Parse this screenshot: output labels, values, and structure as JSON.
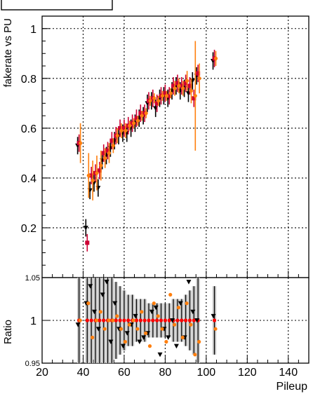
{
  "chart_data": [
    {
      "type": "scatter",
      "title": "",
      "xlabel": "",
      "ylabel": "fakerate vs PU",
      "xlim": [
        20,
        150
      ],
      "ylim": [
        0,
        1.05
      ],
      "yticks": [
        "0.2",
        "0.4",
        "0.6",
        "0.8",
        "1"
      ],
      "grid": true,
      "series": [
        {
          "color": "#000000",
          "marker": "triangle-down",
          "x": [
            38,
            42,
            44,
            46,
            48,
            50,
            52,
            54,
            56,
            58,
            60,
            62,
            64,
            66,
            68,
            70,
            72,
            74,
            76,
            78,
            80,
            82,
            84,
            86,
            88,
            90,
            92,
            94,
            96,
            104
          ],
          "y": [
            0.53,
            0.2,
            0.35,
            0.38,
            0.36,
            0.47,
            0.49,
            0.52,
            0.55,
            0.57,
            0.58,
            0.58,
            0.6,
            0.62,
            0.64,
            0.65,
            0.7,
            0.71,
            0.68,
            0.72,
            0.73,
            0.72,
            0.75,
            0.77,
            0.75,
            0.76,
            0.74,
            0.79,
            0.81,
            0.87
          ]
        },
        {
          "color": "#cc0033",
          "marker": "square",
          "x": [
            38,
            42,
            44,
            46,
            48,
            50,
            52,
            54,
            56,
            58,
            60,
            62,
            64,
            66,
            68,
            70,
            72,
            74,
            76,
            78,
            80,
            82,
            84,
            86,
            88,
            90,
            92,
            94,
            96,
            104
          ],
          "y": [
            0.54,
            0.14,
            0.41,
            0.42,
            0.43,
            0.5,
            0.51,
            0.55,
            0.57,
            0.6,
            0.6,
            0.61,
            0.62,
            0.64,
            0.66,
            0.66,
            0.71,
            0.72,
            0.7,
            0.73,
            0.74,
            0.73,
            0.77,
            0.78,
            0.77,
            0.78,
            0.77,
            0.72,
            0.82,
            0.88
          ]
        },
        {
          "color": "#ff7f0e",
          "marker": "circle",
          "x": [
            38,
            42,
            44,
            46,
            48,
            50,
            52,
            54,
            56,
            58,
            60,
            62,
            64,
            66,
            68,
            70,
            72,
            74,
            76,
            78,
            80,
            82,
            84,
            86,
            88,
            90,
            92,
            94,
            96,
            104
          ],
          "y": [
            0.54,
            0.41,
            0.39,
            0.42,
            0.45,
            0.48,
            0.5,
            0.53,
            0.57,
            0.59,
            0.59,
            0.61,
            0.62,
            0.63,
            0.65,
            0.66,
            0.71,
            0.72,
            0.71,
            0.73,
            0.73,
            0.74,
            0.76,
            0.77,
            0.76,
            0.79,
            0.75,
            0.73,
            0.8,
            0.88
          ],
          "err": [
            0.08,
            0.09,
            0.08,
            0.07,
            0.06,
            0.04,
            0.04,
            0.03,
            0.03,
            0.03,
            0.03,
            0.02,
            0.02,
            0.02,
            0.02,
            0.02,
            0.02,
            0.02,
            0.02,
            0.02,
            0.02,
            0.02,
            0.03,
            0.03,
            0.03,
            0.04,
            0.05,
            0.22,
            0.06,
            0.03
          ]
        }
      ]
    },
    {
      "type": "scatter",
      "title": "",
      "xlabel": "Pileup",
      "ylabel": "Ratio",
      "xlim": [
        20,
        150
      ],
      "ylim": [
        0.95,
        1.05
      ],
      "xticks": [
        "20",
        "40",
        "60",
        "80",
        "100",
        "120",
        "140"
      ],
      "yticks": [
        "0.95",
        "1",
        "1.05"
      ],
      "grid": true,
      "series": [
        {
          "color": "#ff0000",
          "marker": "circle",
          "x": [
            38,
            42,
            44,
            46,
            48,
            50,
            52,
            54,
            56,
            58,
            60,
            62,
            64,
            66,
            68,
            70,
            72,
            74,
            76,
            78,
            80,
            82,
            84,
            86,
            88,
            90,
            92,
            94,
            96,
            104
          ],
          "y": [
            1.0,
            1.0,
            1.0,
            1.0,
            1.0,
            1.0,
            1.0,
            1.0,
            1.0,
            1.0,
            1.0,
            1.0,
            1.0,
            1.0,
            1.0,
            1.0,
            1.0,
            1.0,
            1.0,
            1.0,
            1.0,
            1.0,
            1.0,
            1.0,
            1.0,
            1.0,
            1.0,
            1.0,
            1.0,
            1.0
          ],
          "err": [
            0.06,
            0.06,
            0.06,
            0.06,
            0.05,
            0.05,
            0.05,
            0.05,
            0.045,
            0.04,
            0.035,
            0.03,
            0.03,
            0.025,
            0.025,
            0.025,
            0.02,
            0.02,
            0.02,
            0.02,
            0.02,
            0.02,
            0.025,
            0.025,
            0.025,
            0.03,
            0.035,
            0.04,
            0.05,
            0.04
          ]
        },
        {
          "color": "#000000",
          "marker": "triangle-down",
          "x": [
            38,
            42,
            44,
            46,
            48,
            50,
            52,
            54,
            56,
            58,
            60,
            62,
            64,
            66,
            68,
            70,
            72,
            74,
            76,
            78,
            80,
            82,
            84,
            86,
            88,
            90,
            92,
            94,
            96,
            104
          ],
          "y": [
            0.995,
            1.02,
            1.04,
            1.01,
            0.99,
            1.03,
            1.045,
            0.975,
            1.02,
            0.99,
            0.97,
            0.985,
            0.995,
            1.005,
            0.975,
            0.98,
            0.985,
            1.01,
            1.015,
            0.96,
            0.99,
            0.98,
            1.0,
            0.97,
            1.02,
            0.98,
            1.045,
            1.01,
            1.0,
            1.005
          ]
        },
        {
          "color": "#ff7f0e",
          "marker": "circle",
          "x": [
            38,
            42,
            44,
            46,
            48,
            50,
            52,
            54,
            56,
            58,
            60,
            62,
            64,
            66,
            68,
            70,
            72,
            74,
            76,
            78,
            80,
            82,
            84,
            86,
            88,
            90,
            92,
            94,
            96,
            104
          ],
          "y": [
            1.0,
            1.02,
            0.98,
            1.0,
            1.01,
            0.99,
            1.0,
            1.0,
            1.005,
            0.99,
            0.975,
            0.995,
            1.0,
            0.99,
            1.01,
            0.985,
            0.97,
            1.02,
            1.005,
            0.99,
            0.975,
            1.03,
            0.995,
            1.015,
            0.98,
            1.02,
            0.995,
            0.96,
            0.975,
            0.99
          ]
        }
      ]
    }
  ]
}
